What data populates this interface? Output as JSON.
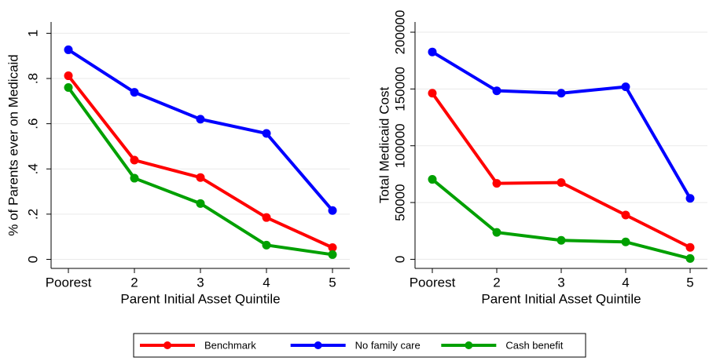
{
  "chart_data": [
    {
      "type": "line",
      "y_label": "% of Parents ever on Medicaid",
      "x_label": "Parent Initial Asset Quintile",
      "categories": [
        "Poorest",
        "2",
        "3",
        "4",
        "5"
      ],
      "ylim": [
        -0.04,
        1.05
      ],
      "yticks": [
        0,
        {
          "value": 0.2,
          "label": ".2"
        },
        {
          "value": 0.4,
          "label": ".4"
        },
        {
          "value": 0.6,
          "label": ".6"
        },
        {
          "value": 0.8,
          "label": ".8"
        },
        1
      ],
      "grid": true,
      "series": [
        {
          "name": "Benchmark",
          "color": "#ff0000",
          "values": [
            0.812,
            0.439,
            0.362,
            0.185,
            0.052
          ]
        },
        {
          "name": "No family care",
          "color": "#0000ff",
          "values": [
            0.927,
            0.739,
            0.62,
            0.557,
            0.216
          ]
        },
        {
          "name": "Cash benefit",
          "color": "#00a000",
          "values": [
            0.76,
            0.359,
            0.247,
            0.063,
            0.021
          ]
        }
      ]
    },
    {
      "type": "line",
      "y_label": "Total Medicaid Cost",
      "x_label": "Parent Initial Asset Quintile",
      "categories": [
        "Poorest",
        "2",
        "3",
        "4",
        "5"
      ],
      "ylim": [
        -8000,
        209000
      ],
      "yticks": [
        0,
        50000,
        100000,
        150000,
        200000
      ],
      "grid": true,
      "series": [
        {
          "name": "Benchmark",
          "color": "#ff0000",
          "values": [
            146300,
            66900,
            67600,
            39000,
            10500
          ]
        },
        {
          "name": "No family care",
          "color": "#0000ff",
          "values": [
            182600,
            148400,
            146300,
            151900,
            53700
          ]
        },
        {
          "name": "Cash benefit",
          "color": "#00a000",
          "values": [
            70400,
            23700,
            16700,
            15300,
            700
          ]
        }
      ]
    }
  ]
}
